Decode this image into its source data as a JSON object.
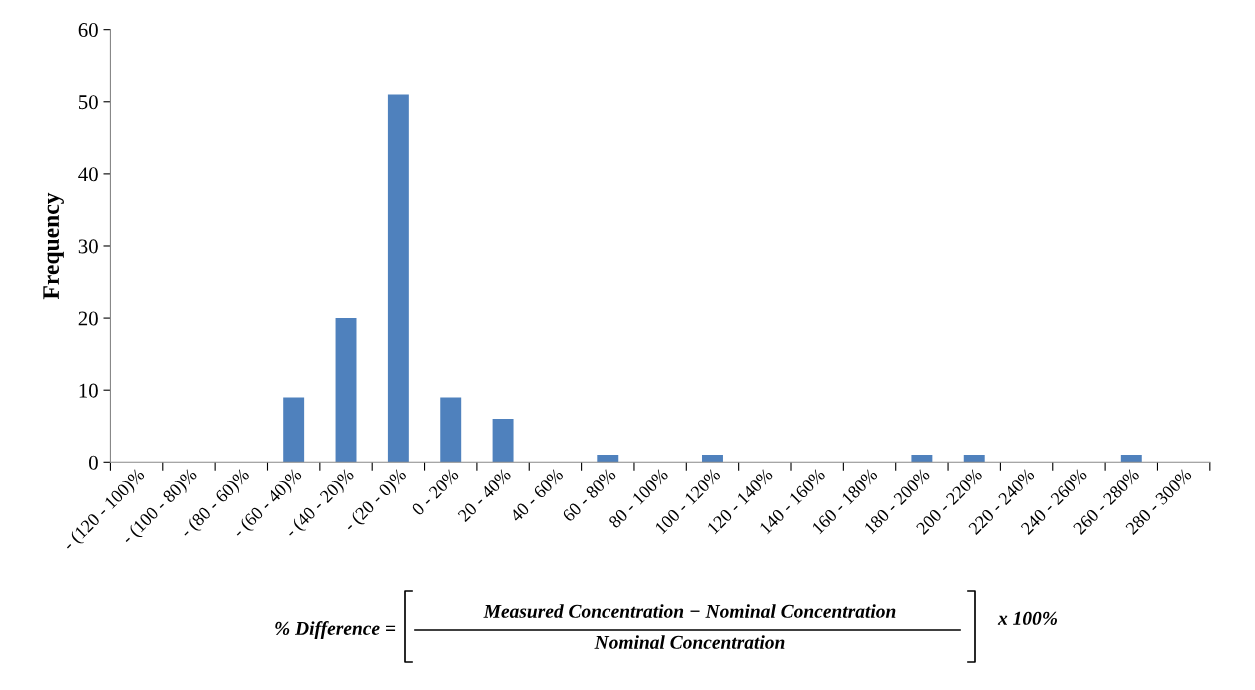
{
  "chart_data": {
    "type": "bar",
    "ylabel": "Frequency",
    "xlabel": "% Difference =",
    "categories": [
      "- (120 - 100)%",
      "- (100 - 80)%",
      "- (80 - 60)%",
      "- (60 - 40)%",
      "- (40 - 20)%",
      "- (20 - 0)%",
      "0 - 20%",
      "20 - 40%",
      "40 - 60%",
      "60 - 80%",
      "80 - 100%",
      "100 - 120%",
      "120 - 140%",
      "140 - 160%",
      "160 - 180%",
      "180 - 200%",
      "200 - 220%",
      "220 - 240%",
      "240 - 260%",
      "260 - 280%",
      "280 - 300%"
    ],
    "values": [
      0,
      0,
      0,
      9,
      20,
      51,
      9,
      6,
      0,
      1,
      0,
      1,
      0,
      0,
      0,
      1,
      1,
      0,
      0,
      1,
      0
    ],
    "color": "#4f81bd",
    "ylim": [
      0,
      60
    ],
    "yticks": [
      0,
      10,
      20,
      30,
      40,
      50,
      60
    ],
    "grid": false,
    "legend": false,
    "annotations": [
      "Measured Concentration − Nominal Concentration",
      "Nominal Concentration",
      "x 100%"
    ]
  }
}
